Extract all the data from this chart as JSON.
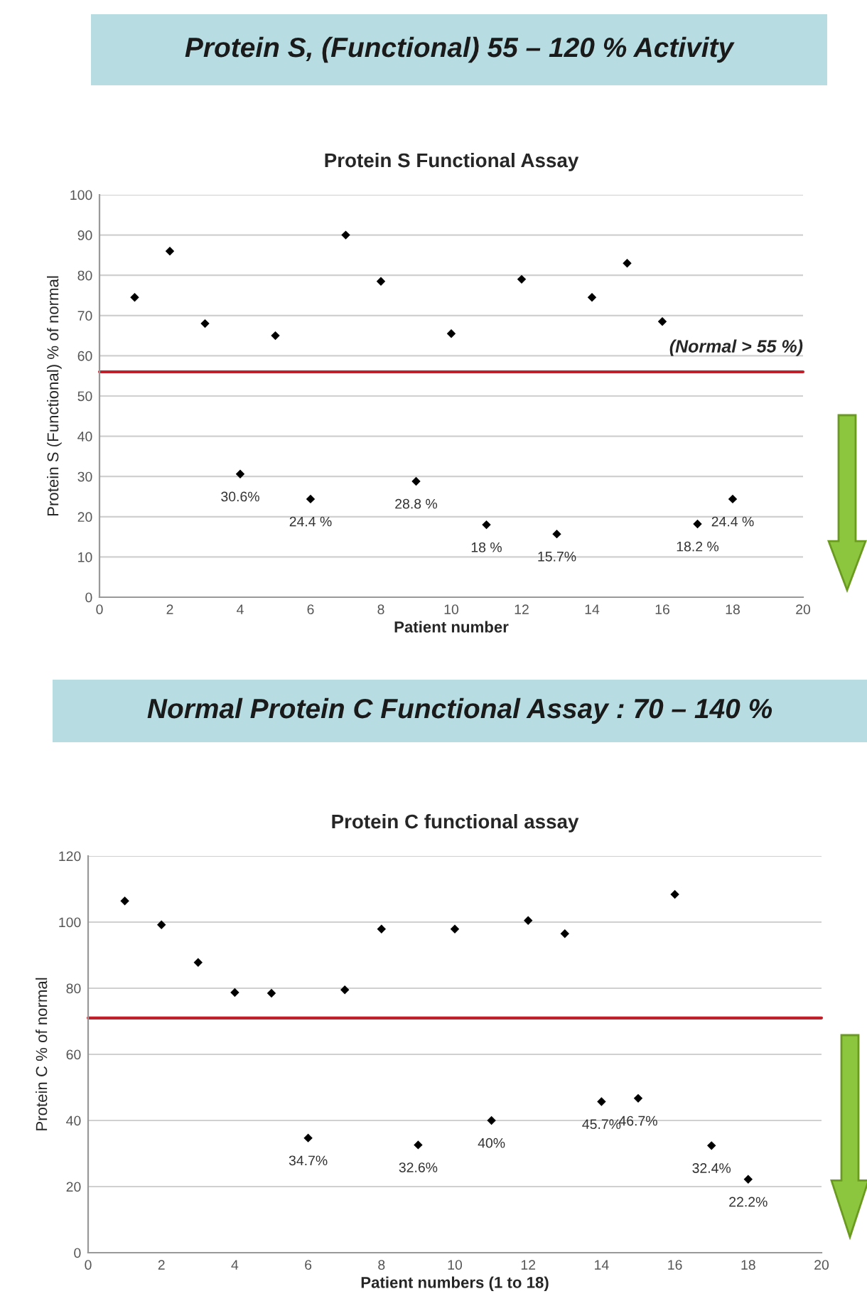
{
  "chart_data": [
    {
      "type": "scatter",
      "title": "Protein S, (Functional) 55 – 120 % Activity",
      "subtitle": "Protein S Functional Assay",
      "xlabel": "Patient number",
      "ylabel": "Protein S (Functional) % of normal",
      "x": [
        1,
        2,
        3,
        4,
        5,
        6,
        7,
        8,
        9,
        10,
        11,
        12,
        13,
        14,
        15,
        16,
        17,
        18
      ],
      "series": [
        {
          "color": "#000000",
          "values": [
            74.5,
            86,
            68,
            30.6,
            65,
            24.4,
            90,
            78.5,
            28.8,
            65.5,
            18,
            79,
            15.7,
            74.5,
            83,
            68.5,
            18.2,
            24.4
          ],
          "value_labels": [
            null,
            null,
            null,
            "30.6%",
            null,
            "24.4 %",
            null,
            null,
            "28.8 %",
            null,
            "18 %",
            null,
            "15.7%",
            null,
            null,
            null,
            "18.2 %",
            "24.4 %"
          ]
        }
      ],
      "xlim": [
        0,
        20
      ],
      "xticks": [
        0,
        2,
        4,
        6,
        8,
        10,
        12,
        14,
        16,
        18,
        20
      ],
      "ylim": [
        0,
        100
      ],
      "yticks": [
        0,
        10,
        20,
        30,
        40,
        50,
        60,
        70,
        80,
        90,
        100
      ],
      "ref_lines": [
        {
          "axis": "y",
          "value": 56,
          "label": "(Normal > 55 %)",
          "color": "#c0202a"
        }
      ],
      "grid": "y",
      "marker": "diamond",
      "legend": false
    },
    {
      "type": "scatter",
      "title": "Normal Protein C Functional Assay : 70 – 140 %",
      "subtitle": "Protein C functional assay",
      "xlabel": "Patient numbers (1 to 18)",
      "ylabel": "Protein C % of normal",
      "x": [
        1,
        2,
        3,
        4,
        5,
        6,
        7,
        8,
        9,
        10,
        11,
        12,
        13,
        14,
        15,
        16,
        17,
        18
      ],
      "series": [
        {
          "color": "#000000",
          "values": [
            106.4,
            99.2,
            87.8,
            78.7,
            78.5,
            34.7,
            79.5,
            97.9,
            32.6,
            97.9,
            40,
            100.5,
            96.5,
            45.7,
            46.7,
            108.4,
            32.4,
            22.2
          ],
          "value_labels": [
            null,
            null,
            null,
            null,
            null,
            "34.7%",
            null,
            null,
            "32.6%",
            null,
            "40%",
            null,
            null,
            "45.7%",
            "46.7%",
            null,
            "32.4%",
            "22.2%"
          ]
        }
      ],
      "xlim": [
        0,
        20
      ],
      "xticks": [
        0,
        2,
        4,
        6,
        8,
        10,
        12,
        14,
        16,
        18,
        20
      ],
      "ylim": [
        0,
        120
      ],
      "yticks": [
        0,
        20,
        40,
        60,
        80,
        100,
        120
      ],
      "ref_lines": [
        {
          "axis": "y",
          "value": 71,
          "color": "#c0202a"
        }
      ],
      "grid": "y",
      "marker": "diamond",
      "legend": false
    }
  ]
}
